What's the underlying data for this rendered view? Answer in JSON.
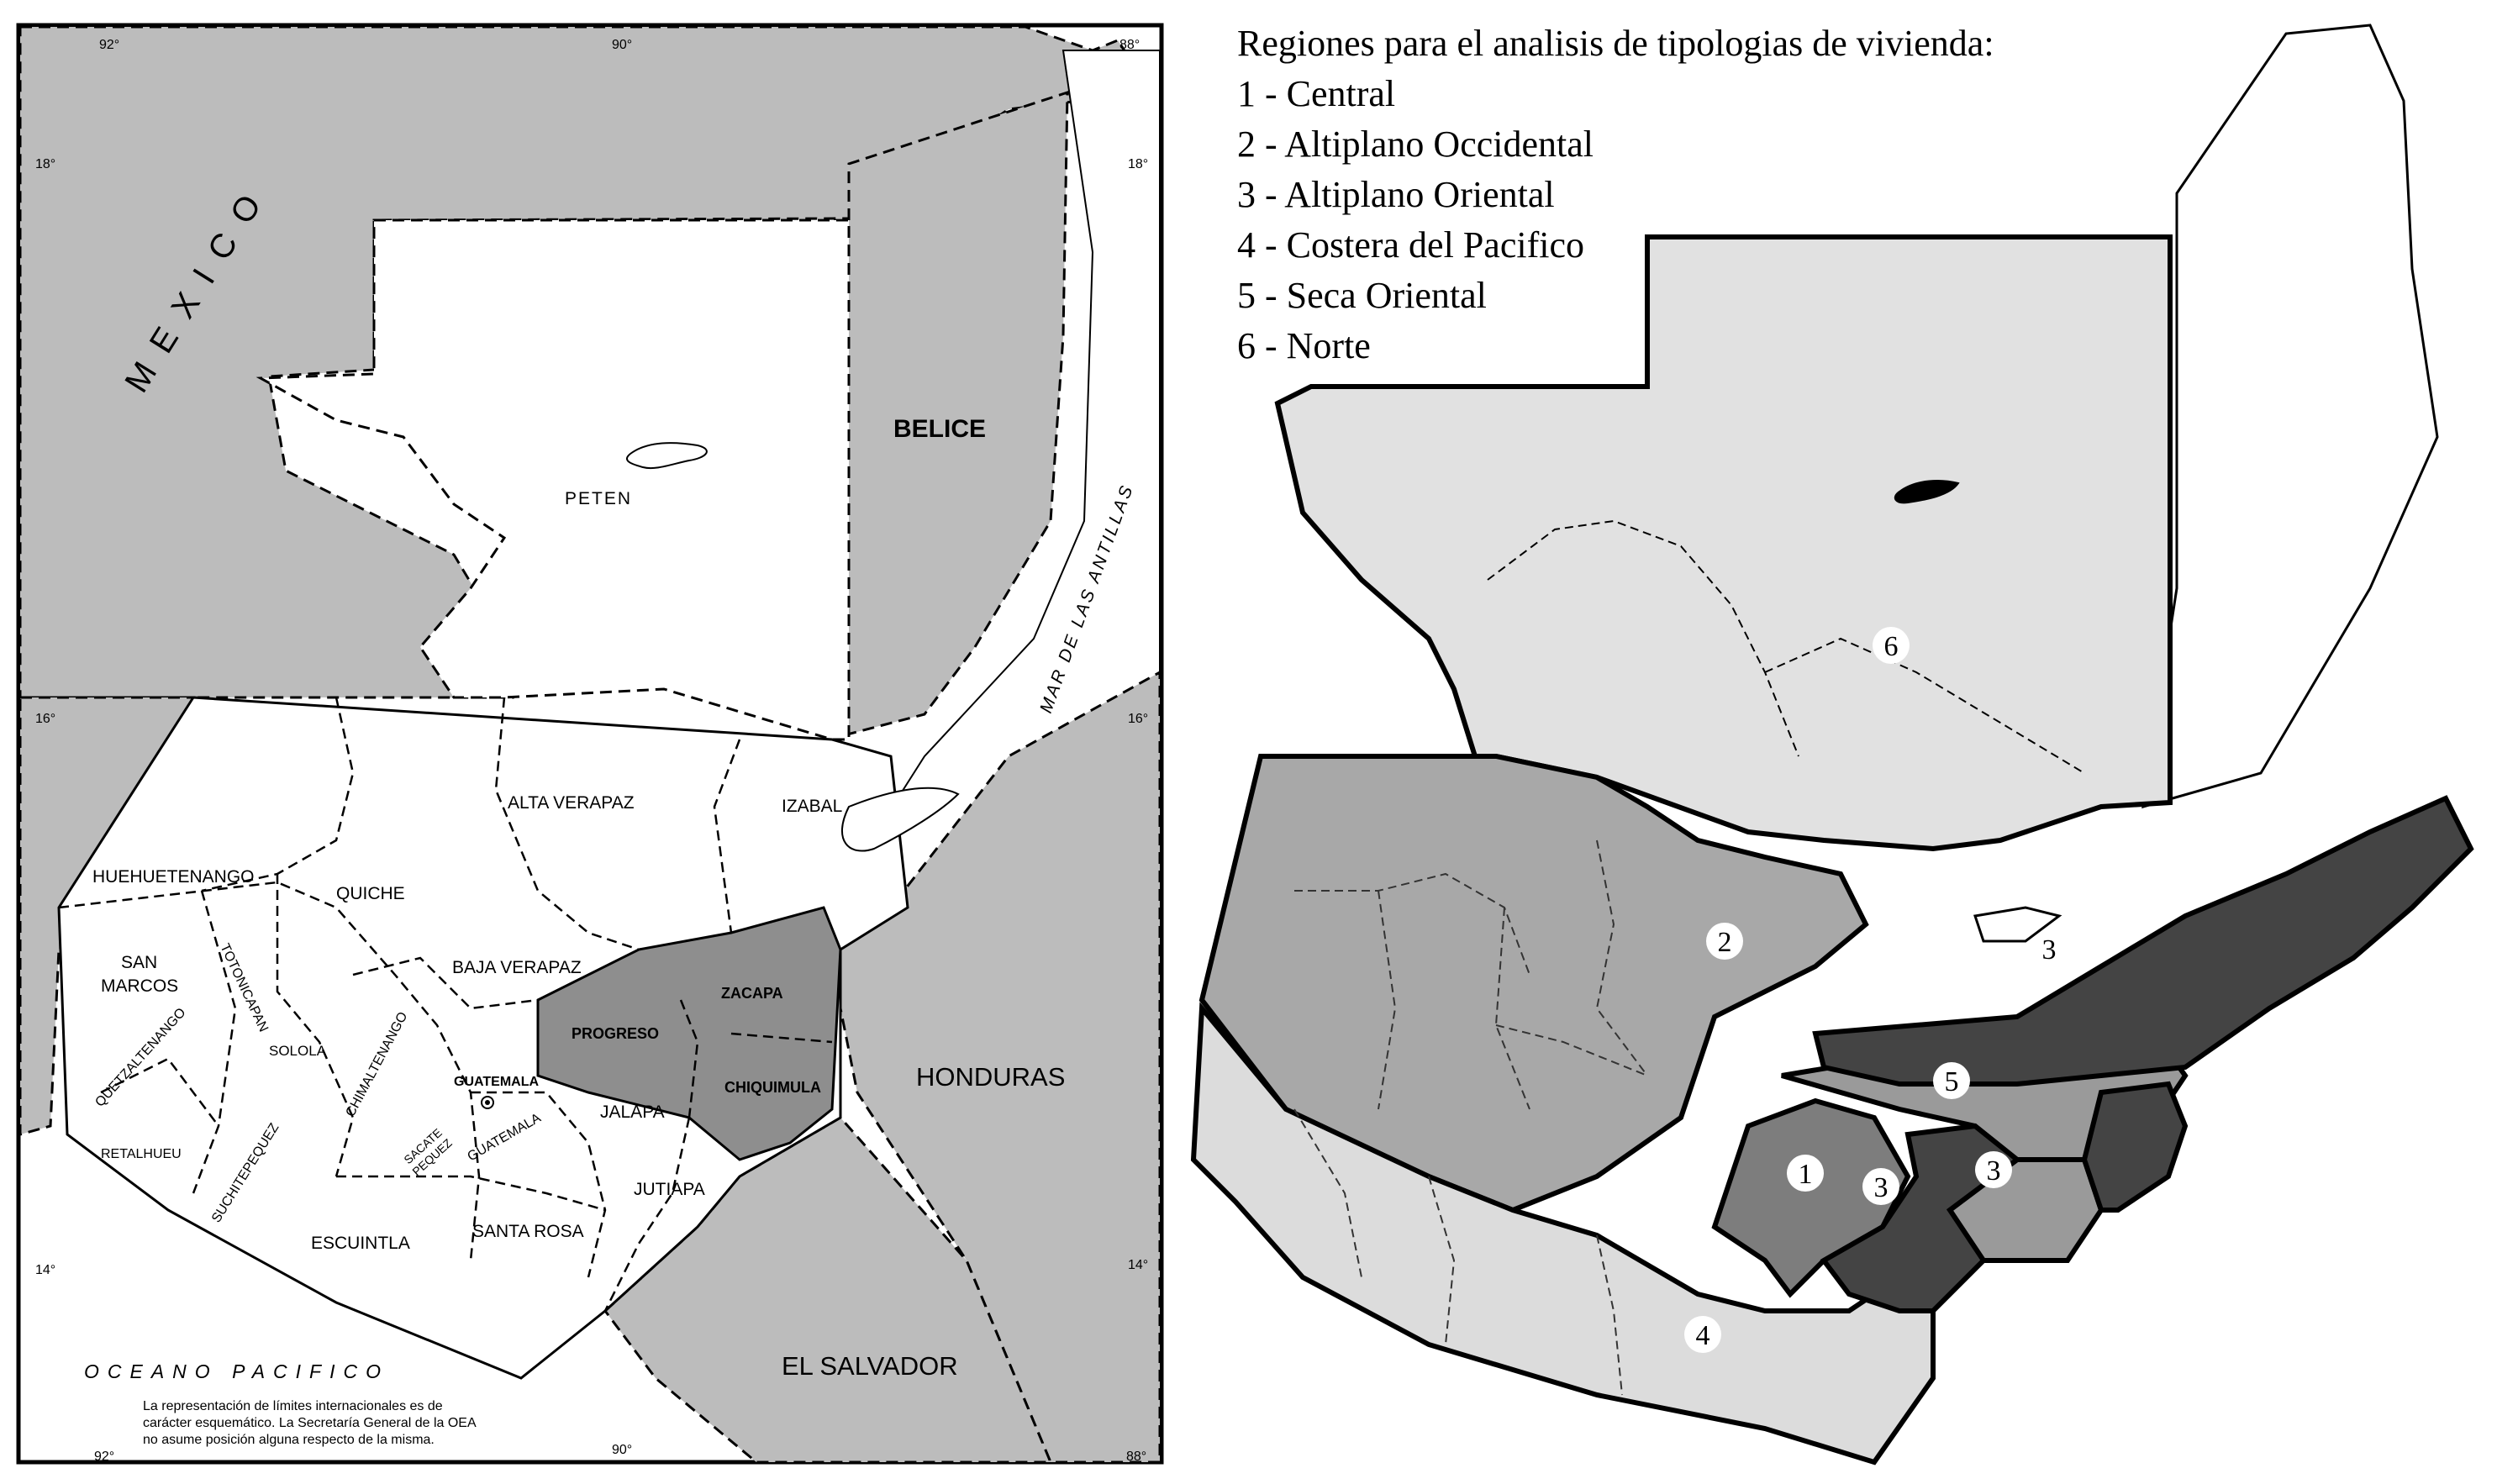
{
  "left_map": {
    "countries": {
      "mexico": "MEXICO",
      "belice": "BELICE",
      "honduras": "HONDURAS",
      "el_salvador": "EL SALVADOR"
    },
    "water": {
      "ocean": "OCEANO PACIFICO",
      "sea": "MAR DE LAS ANTILLAS"
    },
    "departments": {
      "peten": "PETEN",
      "alta_verapaz": "ALTA VERAPAZ",
      "izabal": "IZABAL",
      "huehuetenango": "HUEHUETENANGO",
      "quiche": "QUICHE",
      "san_marcos_1": "SAN",
      "san_marcos_2": "MARCOS",
      "totonicapan": "TOTONICAPAN",
      "baja_verapaz": "BAJA VERAPAZ",
      "zacapa": "ZACAPA",
      "progreso": "PROGRESO",
      "solola": "SOLOLA",
      "quetzaltenango": "QUETZALTENANGO",
      "chimaltenango": "CHIMALTENANGO",
      "guatemala_capital": "GUATEMALA",
      "sacatepequez_1": "SACATE",
      "sacatepequez_2": "PEQUEZ",
      "guatemala": "GUATEMALA",
      "chiquimula": "CHIQUIMULA",
      "jalapa": "JALAPA",
      "retalhuleu": "RETALHUEU",
      "suchitepequez": "SUCHITEPEQUEZ",
      "jutiapa": "JUTIAPA",
      "escuintla": "ESCUINTLA",
      "santa_rosa": "SANTA ROSA"
    },
    "graticule": {
      "top_92": "92°",
      "top_90": "90°",
      "top_88": "88°",
      "bottom_92": "92°",
      "bottom_90": "90°",
      "bottom_88": "88°",
      "left_18": "18°",
      "left_16": "16°",
      "left_14": "14°",
      "right_18": "18°",
      "right_16": "16°",
      "right_14": "14°"
    },
    "disclaimer": [
      "La representación de límites internacionales es de",
      "carácter esquemático. La Secretaría General de la OEA",
      "no asume posición alguna respecto de la misma."
    ],
    "colors": {
      "shade": "#bcbcbc",
      "dept_dark": "#8e8e8e",
      "land": "#ffffff"
    }
  },
  "right_map": {
    "legend": {
      "title": "Regiones para el analisis de tipologias de vivienda:",
      "items": [
        "1 - Central",
        "2 - Altiplano Occidental",
        "3 - Altiplano Oriental",
        "4 - Costera del Pacifico",
        "5 - Seca Oriental",
        "6 - Norte"
      ]
    },
    "markers": {
      "r1": "1",
      "r2": "2",
      "r3_ne": "3",
      "r3_center": "3",
      "r3_east": "3",
      "r4": "4",
      "r5": "5",
      "r6": "6"
    },
    "colors": {
      "central": "#7d7d7d",
      "altiplano_occidental": "#a8a8a8",
      "altiplano_oriental": "#444444",
      "costera_pacifico": "#dcdcdc",
      "seca_oriental": "#9a9a9a",
      "norte": "#e1e1e1",
      "outline": "#000000"
    }
  }
}
